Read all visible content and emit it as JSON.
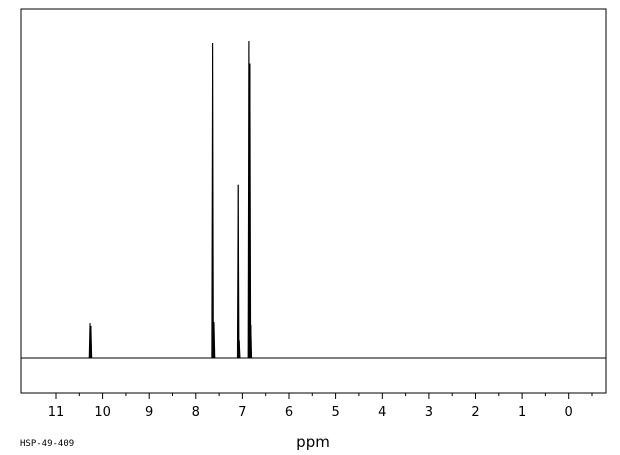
{
  "chart_data": {
    "type": "line",
    "xlabel": "ppm",
    "x_reversed": true,
    "xlim": [
      11.75,
      -0.8
    ],
    "ylim": [
      0,
      100
    ],
    "grid": false,
    "ticks": [
      11,
      10,
      9,
      8,
      7,
      6,
      5,
      4,
      3,
      2,
      1,
      0
    ],
    "tick_labels": [
      "11",
      "10",
      "9",
      "8",
      "7",
      "6",
      "5",
      "4",
      "3",
      "2",
      "1",
      "0"
    ],
    "series": [
      {
        "peaks": [
          {
            "x": 10.27,
            "y": 11.1
          },
          {
            "x": 10.25,
            "y": 10.2
          },
          {
            "x": 7.64,
            "y": 100.0
          },
          {
            "x": 7.61,
            "y": 11.4
          },
          {
            "x": 7.09,
            "y": 55.0
          },
          {
            "x": 7.07,
            "y": 5.6
          },
          {
            "x": 6.86,
            "y": 100.6
          },
          {
            "x": 6.84,
            "y": 93.5
          },
          {
            "x": 6.82,
            "y": 10.5
          }
        ]
      }
    ]
  },
  "footer": {
    "sample_id": "HSP-49-409"
  }
}
